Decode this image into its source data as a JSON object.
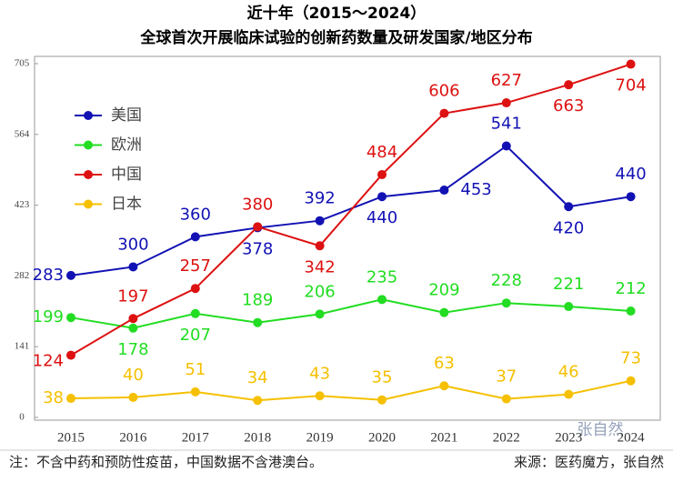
{
  "chart_data": {
    "type": "line",
    "title": "近十年（2015～2024）",
    "subtitle": "全球首次开展临床试验的创新药数量及研发国家/地区分布",
    "categories": [
      "2015",
      "2016",
      "2017",
      "2018",
      "2019",
      "2020",
      "2021",
      "2022",
      "2023",
      "2024"
    ],
    "series": [
      {
        "name": "美国",
        "color": "#1212b4",
        "values": [
          283,
          300,
          360,
          378,
          392,
          440,
          453,
          541,
          420,
          440
        ]
      },
      {
        "name": "欧洲",
        "color": "#22dd22",
        "values": [
          199,
          178,
          207,
          189,
          206,
          235,
          209,
          228,
          221,
          212
        ]
      },
      {
        "name": "中国",
        "color": "#dd1111",
        "values": [
          124,
          197,
          257,
          380,
          342,
          484,
          606,
          627,
          663,
          704
        ]
      },
      {
        "name": "日本",
        "color": "#f5c000",
        "values": [
          38,
          40,
          51,
          34,
          43,
          35,
          63,
          37,
          46,
          73
        ]
      }
    ],
    "ylim": [
      0,
      705
    ],
    "yticks": [
      0,
      141,
      282,
      423,
      564,
      705
    ],
    "grid": false,
    "legend": "upper-left",
    "note": "注：不含中药和预防性疫苗，中国数据不含港澳台。",
    "source": "来源：医药魔方，张自然",
    "watermark": "张自然"
  }
}
